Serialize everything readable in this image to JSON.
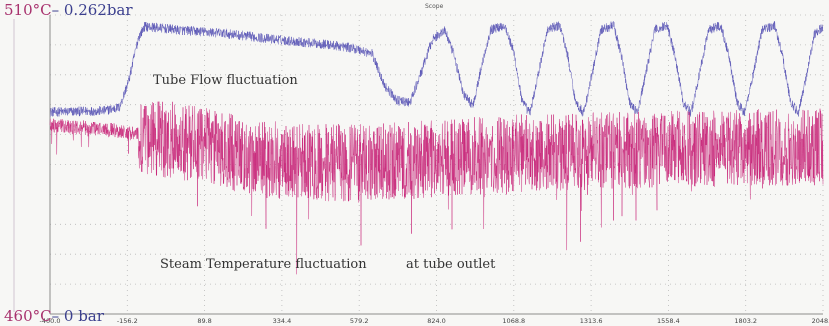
{
  "chart_data": {
    "type": "line",
    "title": "Scope",
    "x_ticks": [
      "-400.0",
      "-156.2",
      "89.8",
      "334.4",
      "579.2",
      "824.0",
      "1068.8",
      "1313.6",
      "1558.4",
      "1803.2",
      "2048.0"
    ],
    "xlim": [
      -400.0,
      2048.0
    ],
    "grid": true,
    "labels": {
      "top_temp": "510°C",
      "top_pres": "– 0.262bar",
      "bottom_temp": "460°C",
      "bottom_pres": "– 0 bar"
    },
    "annotations": {
      "flow": "Tube Flow fluctuation",
      "steam": "Steam Temperature fluctuation",
      "outlet": "at tube outlet"
    },
    "colors": {
      "flow": "#5a55b5",
      "steam": "#c8287a",
      "grid": "#b9b9b9",
      "axis": "#8c8c8c"
    },
    "series": [
      {
        "key": "flow",
        "unit": "bar",
        "ylim": [
          0,
          0.262
        ],
        "points": [
          [
            -400,
            0.177
          ],
          [
            -230,
            0.178
          ],
          [
            -180,
            0.181
          ],
          [
            -150,
            0.205
          ],
          [
            -120,
            0.242
          ],
          [
            -100,
            0.252
          ],
          [
            0,
            0.249
          ],
          [
            150,
            0.246
          ],
          [
            300,
            0.241
          ],
          [
            480,
            0.236
          ],
          [
            560,
            0.233
          ],
          [
            620,
            0.228
          ],
          [
            660,
            0.2
          ],
          [
            700,
            0.187
          ],
          [
            740,
            0.185
          ],
          [
            780,
            0.215
          ],
          [
            810,
            0.24
          ],
          [
            850,
            0.249
          ],
          [
            880,
            0.226
          ],
          [
            910,
            0.192
          ],
          [
            940,
            0.183
          ],
          [
            965,
            0.215
          ],
          [
            995,
            0.249
          ],
          [
            1040,
            0.253
          ],
          [
            1070,
            0.228
          ],
          [
            1095,
            0.186
          ],
          [
            1120,
            0.176
          ],
          [
            1145,
            0.208
          ],
          [
            1175,
            0.249
          ],
          [
            1215,
            0.253
          ],
          [
            1240,
            0.226
          ],
          [
            1265,
            0.185
          ],
          [
            1290,
            0.176
          ],
          [
            1315,
            0.208
          ],
          [
            1345,
            0.249
          ],
          [
            1385,
            0.253
          ],
          [
            1410,
            0.226
          ],
          [
            1435,
            0.186
          ],
          [
            1460,
            0.176
          ],
          [
            1485,
            0.208
          ],
          [
            1515,
            0.249
          ],
          [
            1555,
            0.253
          ],
          [
            1580,
            0.226
          ],
          [
            1605,
            0.186
          ],
          [
            1630,
            0.176
          ],
          [
            1655,
            0.208
          ],
          [
            1685,
            0.249
          ],
          [
            1725,
            0.253
          ],
          [
            1750,
            0.226
          ],
          [
            1775,
            0.186
          ],
          [
            1800,
            0.176
          ],
          [
            1825,
            0.208
          ],
          [
            1855,
            0.249
          ],
          [
            1895,
            0.253
          ],
          [
            1920,
            0.226
          ],
          [
            1945,
            0.186
          ],
          [
            1970,
            0.176
          ],
          [
            1995,
            0.208
          ],
          [
            2020,
            0.245
          ],
          [
            2048,
            0.252
          ]
        ]
      },
      {
        "key": "steam",
        "unit": "°C",
        "ylim": [
          460,
          510
        ],
        "points": [
          [
            -400,
            491.5
          ],
          [
            -300,
            491.2
          ],
          [
            -200,
            490.8
          ],
          [
            -100,
            489.8
          ],
          [
            0,
            488.9
          ],
          [
            100,
            487.9
          ],
          [
            200,
            486.6
          ],
          [
            300,
            485.8
          ],
          [
            400,
            485.5
          ],
          [
            500,
            485.3
          ],
          [
            600,
            485.3
          ],
          [
            700,
            485.6
          ],
          [
            800,
            485.9
          ],
          [
            900,
            486.3
          ],
          [
            1000,
            486.6
          ],
          [
            1100,
            486.9
          ],
          [
            1200,
            487.1
          ],
          [
            1300,
            487.2
          ],
          [
            1400,
            487.4
          ],
          [
            1500,
            487.5
          ],
          [
            1600,
            487.6
          ],
          [
            1700,
            487.7
          ],
          [
            1800,
            487.8
          ],
          [
            1900,
            487.8
          ],
          [
            2048,
            487.9
          ]
        ]
      }
    ]
  }
}
